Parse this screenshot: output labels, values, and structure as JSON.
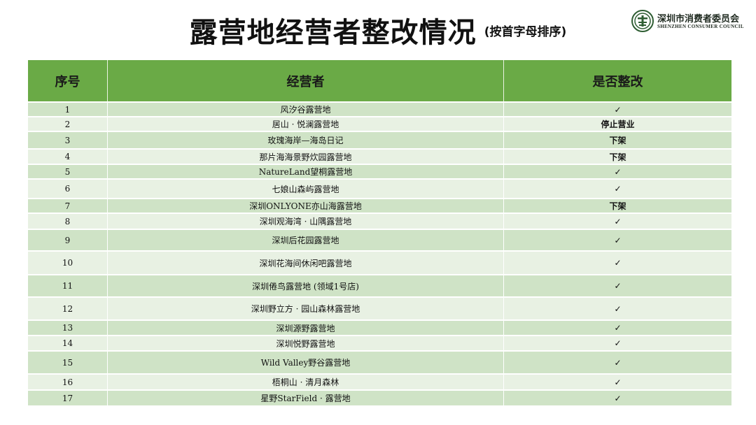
{
  "title": "露营地经营者整改情况",
  "subtitle": "(按首字母排序)",
  "logo": {
    "name_cn": "深圳市消费者委员会",
    "name_en": "SHENZHEN CONSUMER COUNCIL"
  },
  "table": {
    "headers": [
      "序号",
      "经营者",
      "是否整改"
    ],
    "rows": [
      {
        "no": "1",
        "operator": "风汐谷露营地",
        "status": "✓"
      },
      {
        "no": "2",
        "operator": "居山 · 悦澜露营地",
        "status": "停止营业"
      },
      {
        "no": "3",
        "operator": "玫瑰海岸—海岛日记",
        "status": "下架"
      },
      {
        "no": "4",
        "operator": "那片海海景野炊园露营地",
        "status": "下架"
      },
      {
        "no": "5",
        "operator": "NatureLand望桐露营地",
        "status": "✓"
      },
      {
        "no": "6",
        "operator": "七娘山森屿露营地",
        "status": "✓"
      },
      {
        "no": "7",
        "operator": "深圳ONLYONE亦山海露营地",
        "status": "下架"
      },
      {
        "no": "8",
        "operator": "深圳观海湾 · 山隅露营地",
        "status": "✓"
      },
      {
        "no": "9",
        "operator": "深圳后花园露营地",
        "status": "✓"
      },
      {
        "no": "10",
        "operator": "深圳花海间休闲吧露营地",
        "status": "✓"
      },
      {
        "no": "11",
        "operator": "深圳倦鸟露营地 (领域1号店)",
        "status": "✓"
      },
      {
        "no": "12",
        "operator": "深圳野立方 · 园山森林露营地",
        "status": "✓"
      },
      {
        "no": "13",
        "operator": "深圳源野露营地",
        "status": "✓"
      },
      {
        "no": "14",
        "operator": "深圳悦野露营地",
        "status": "✓"
      },
      {
        "no": "15",
        "operator": "Wild Valley野谷露营地",
        "status": "✓"
      },
      {
        "no": "16",
        "operator": "梧桐山 · 清月森林",
        "status": "✓"
      },
      {
        "no": "17",
        "operator": "星野StarField · 露营地",
        "status": "✓"
      }
    ]
  },
  "colors": {
    "header_green": "#6aaa46",
    "row_dark": "#cfe3c6",
    "row_light": "#e8f1e3"
  }
}
